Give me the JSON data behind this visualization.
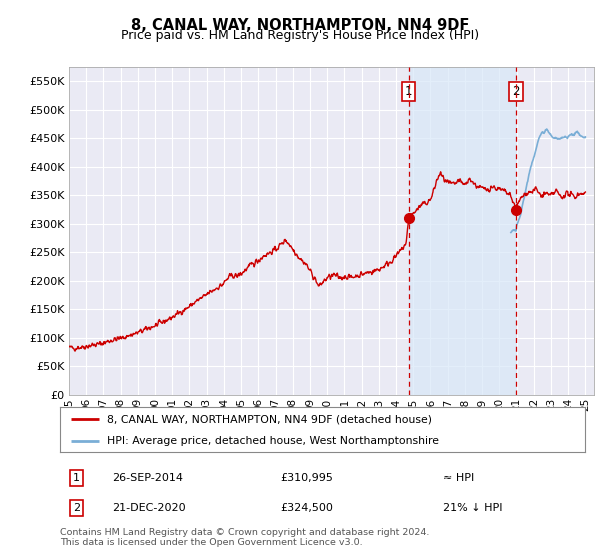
{
  "title": "8, CANAL WAY, NORTHAMPTON, NN4 9DF",
  "subtitle": "Price paid vs. HM Land Registry's House Price Index (HPI)",
  "ytick_values": [
    0,
    50000,
    100000,
    150000,
    200000,
    250000,
    300000,
    350000,
    400000,
    450000,
    500000,
    550000
  ],
  "ylim": [
    0,
    575000
  ],
  "xlim_start": 1995.25,
  "xlim_end": 2025.5,
  "xtick_years": [
    1995,
    1996,
    1997,
    1998,
    1999,
    2000,
    2001,
    2002,
    2003,
    2004,
    2005,
    2006,
    2007,
    2008,
    2009,
    2010,
    2011,
    2012,
    2013,
    2014,
    2015,
    2016,
    2017,
    2018,
    2019,
    2020,
    2021,
    2022,
    2023,
    2024,
    2025
  ],
  "background_color": "#ffffff",
  "plot_bg_color": "#eaeaf4",
  "grid_color": "#ffffff",
  "red_line_color": "#cc0000",
  "blue_line_color": "#7aaed6",
  "shade_color": "#d8e8f8",
  "sale1_x": 2014.74,
  "sale1_y": 310995,
  "sale2_x": 2020.97,
  "sale2_y": 324500,
  "sale1_date": "26-SEP-2014",
  "sale1_price": "£310,995",
  "sale1_hpi": "≈ HPI",
  "sale2_date": "21-DEC-2020",
  "sale2_price": "£324,500",
  "sale2_hpi": "21% ↓ HPI",
  "legend_line1": "8, CANAL WAY, NORTHAMPTON, NN4 9DF (detached house)",
  "legend_line2": "HPI: Average price, detached house, West Northamptonshire",
  "footnote": "Contains HM Land Registry data © Crown copyright and database right 2024.\nThis data is licensed under the Open Government Licence v3.0."
}
